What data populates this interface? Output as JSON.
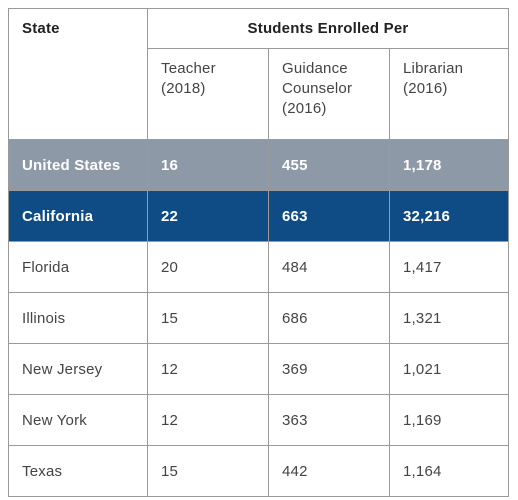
{
  "table": {
    "state_header": "State",
    "group_header": "Students Enrolled Per",
    "columns": [
      "Teacher\n(2018)",
      "Guidance\nCounselor\n(2016)",
      "Librarian\n(2016)"
    ],
    "rows": [
      {
        "state": "United States",
        "teacher": "16",
        "counselor": "455",
        "librarian": "1,178"
      },
      {
        "state": "California",
        "teacher": "22",
        "counselor": "663",
        "librarian": "32,216"
      },
      {
        "state": "Florida",
        "teacher": "20",
        "counselor": "484",
        "librarian": "1,417"
      },
      {
        "state": "Illinois",
        "teacher": "15",
        "counselor": "686",
        "librarian": "1,321"
      },
      {
        "state": "New Jersey",
        "teacher": "12",
        "counselor": "369",
        "librarian": "1,021"
      },
      {
        "state": "New York",
        "teacher": "12",
        "counselor": "363",
        "librarian": "1,169"
      },
      {
        "state": "Texas",
        "teacher": "15",
        "counselor": "442",
        "librarian": "1,164"
      }
    ]
  },
  "colors": {
    "us_row": "#8d99a6",
    "california_row": "#0f4c86",
    "border": "#9a9a9a"
  }
}
